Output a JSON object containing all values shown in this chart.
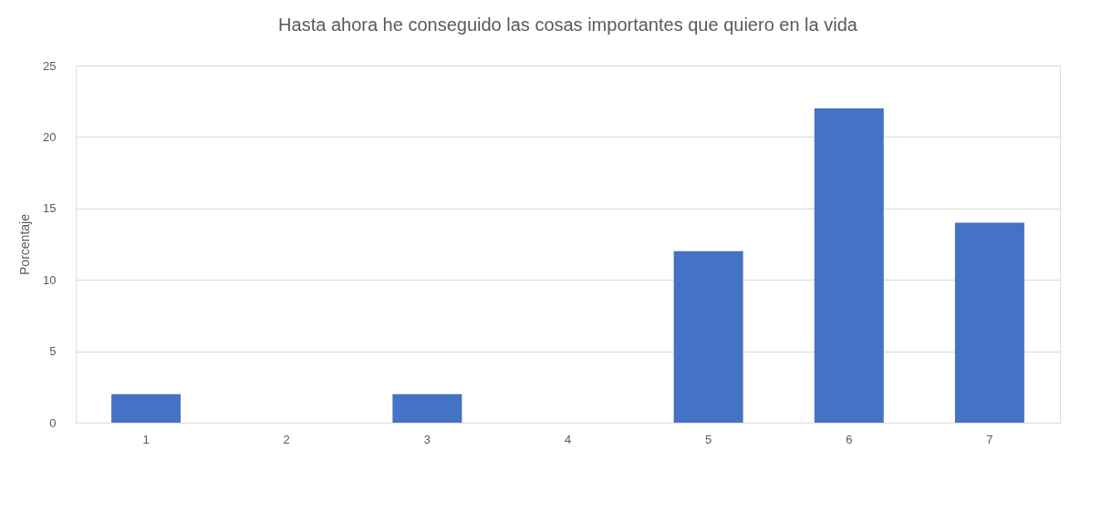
{
  "chart_data": {
    "type": "bar",
    "title": "Hasta ahora he conseguido las cosas importantes que quiero en la vida",
    "ylabel": "Porcentaje",
    "categories": [
      "1",
      "2",
      "3",
      "4",
      "5",
      "6",
      "7"
    ],
    "values": [
      2,
      0,
      2,
      0,
      12,
      22,
      14
    ],
    "color": "#4472c4",
    "ylim": [
      0,
      25
    ],
    "yticks": [
      0,
      5,
      10,
      15,
      20,
      25
    ],
    "grid": "y"
  }
}
